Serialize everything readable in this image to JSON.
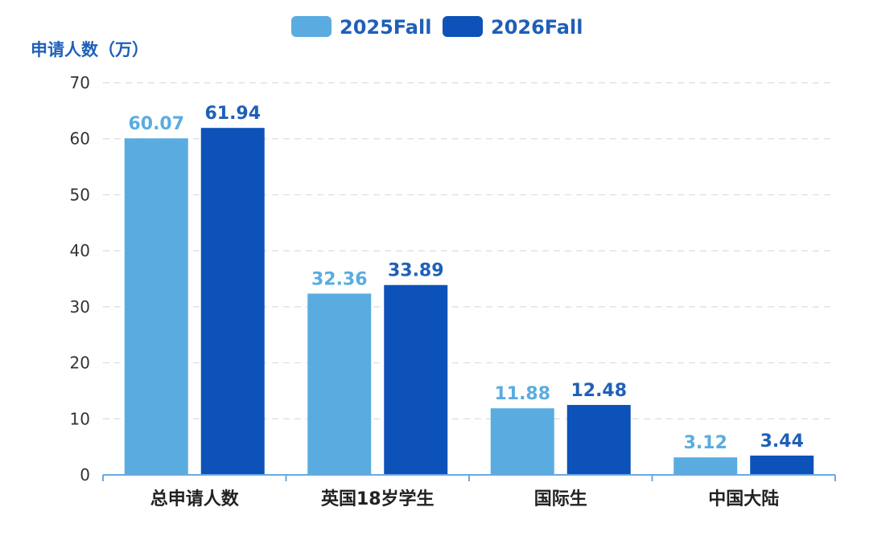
{
  "chart_data": {
    "type": "bar",
    "ylabel": "申请人数（万）",
    "categories": [
      "总申请人数",
      "英国18岁学生",
      "国际生",
      "中国大陆"
    ],
    "series": [
      {
        "name": "2025Fall",
        "color": "#5aace0",
        "values": [
          60.07,
          32.36,
          11.88,
          3.12
        ]
      },
      {
        "name": "2026Fall",
        "color": "#0d52b8",
        "values": [
          61.94,
          33.89,
          12.48,
          3.44
        ]
      }
    ],
    "value_labels": [
      [
        "60.07",
        "32.36",
        "11.88",
        "3.12"
      ],
      [
        "61.94",
        "33.89",
        "12.48",
        "3.44"
      ]
    ],
    "yticks": [
      "0",
      "10",
      "20",
      "30",
      "40",
      "50",
      "60",
      "70"
    ],
    "ylim": [
      0,
      70
    ],
    "grid": true,
    "legend": "top-center"
  }
}
